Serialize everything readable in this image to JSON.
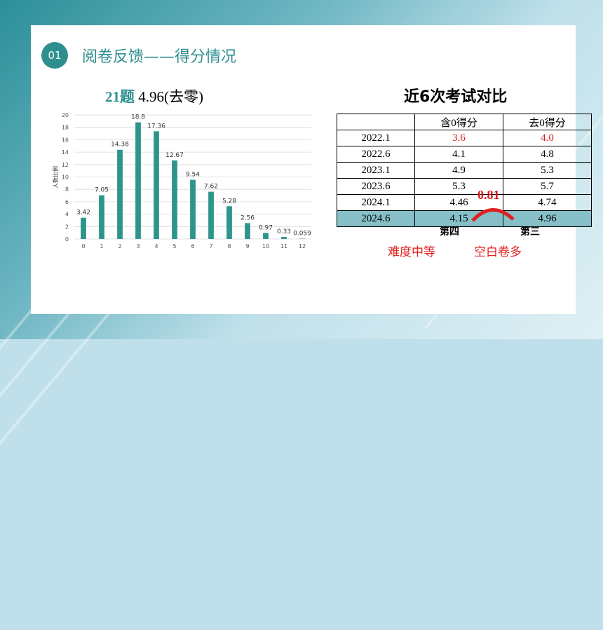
{
  "header": {
    "badge": "01",
    "title": "阅卷反馈——得分情况"
  },
  "chart_title": {
    "question": "21题",
    "score": " 4.96(去零)"
  },
  "chart_data": {
    "type": "bar",
    "categories": [
      "0",
      "1",
      "2",
      "3",
      "4",
      "5",
      "6",
      "7",
      "8",
      "9",
      "10",
      "11",
      "12"
    ],
    "values": [
      3.42,
      7.05,
      14.38,
      18.8,
      17.36,
      12.67,
      9.54,
      7.62,
      5.28,
      2.56,
      0.97,
      0.33,
      0.059
    ],
    "value_labels": [
      "3.42",
      "7.05",
      "14.38",
      "18.8",
      "17.36",
      "12.67",
      "9.54",
      "7.62",
      "5.28",
      "2.56",
      "0.97",
      "0.33",
      "0.059"
    ],
    "ylabel": "人数比例",
    "xlabel": "",
    "ylim": [
      0,
      20
    ],
    "yticks": [
      "0",
      "2",
      "4",
      "6",
      "8",
      "10",
      "12",
      "14",
      "16",
      "18",
      "20"
    ],
    "grid": true,
    "bar_color": "#2e958c"
  },
  "comparison": {
    "title": "近6次考试对比",
    "headers": [
      "",
      "含0得分",
      "去0得分"
    ],
    "rows": [
      {
        "exam": "2022.1",
        "with_zero": "3.6",
        "without_zero": "4.0"
      },
      {
        "exam": "2022.6",
        "with_zero": "4.1",
        "without_zero": "4.8"
      },
      {
        "exam": "2023.1",
        "with_zero": "4.9",
        "without_zero": "5.3"
      },
      {
        "exam": "2023.6",
        "with_zero": "5.3",
        "without_zero": "5.7"
      },
      {
        "exam": "2024.1",
        "with_zero": "4.46",
        "without_zero": "4.74"
      },
      {
        "exam": "2024.6",
        "with_zero": "4.15",
        "without_zero": "4.96"
      }
    ],
    "gap_label": "0.81",
    "rank_with_zero": "第四",
    "rank_without_zero": "第三",
    "note_left": "难度中等",
    "note_right": "空白卷多",
    "highlight_color": "#86bfc7",
    "accent_color": "#d8191c"
  }
}
